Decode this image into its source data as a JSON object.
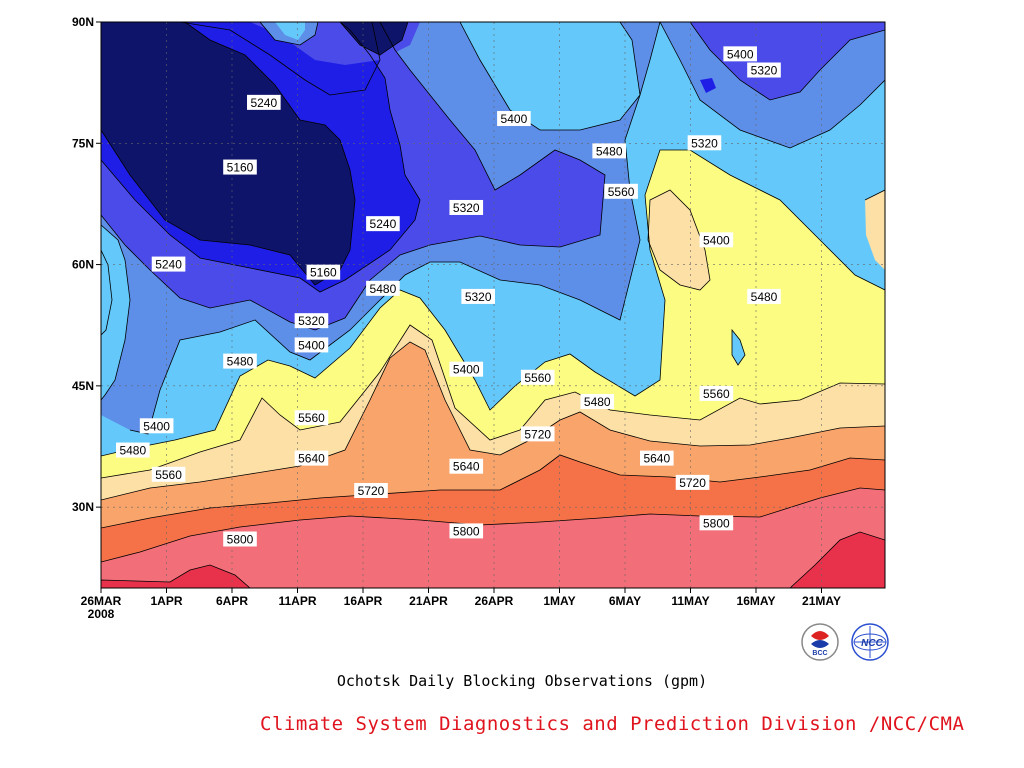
{
  "chart_data": {
    "type": "contour",
    "title": "",
    "caption": "Ochotsk Daily Blocking Observations (gpm)",
    "credit": "Climate System Diagnostics and Prediction Division /NCC/CMA",
    "xlabel": "",
    "ylabel": "",
    "x_ticks": [
      "26MAR\n2008",
      "1APR",
      "6APR",
      "11APR",
      "16APR",
      "21APR",
      "26APR",
      "1MAY",
      "6MAY",
      "11MAY",
      "16MAY",
      "21MAY"
    ],
    "y_ticks": [
      "30N",
      "45N",
      "60N",
      "75N",
      "90N"
    ],
    "ylim": [
      20,
      90
    ],
    "grid": true,
    "contour_levels": [
      5160,
      5240,
      5320,
      5400,
      5480,
      5560,
      5640,
      5720,
      5800,
      5880
    ],
    "band_colors": [
      "#0f146b",
      "#1e1ee6",
      "#4b4bea",
      "#5d8ee8",
      "#64c8fa",
      "#fcfc82",
      "#fce0a6",
      "#f9a46a",
      "#f57249",
      "#f26e78",
      "#e8324b"
    ],
    "contour_labels": [
      {
        "value": "5240",
        "date": "8APR",
        "lat": 80
      },
      {
        "value": "5160",
        "date": "6APR",
        "lat": 72
      },
      {
        "value": "5240",
        "date": "31MAR",
        "lat": 60
      },
      {
        "value": "5160",
        "date": "13APR",
        "lat": 59
      },
      {
        "value": "5240",
        "date": "18APR",
        "lat": 65
      },
      {
        "value": "5320",
        "date": "12APR",
        "lat": 53
      },
      {
        "value": "5400",
        "date": "12APR",
        "lat": 50
      },
      {
        "value": "5480",
        "date": "18APR",
        "lat": 57
      },
      {
        "value": "5480",
        "date": "6APR",
        "lat": 48
      },
      {
        "value": "5400",
        "date": "30MAR",
        "lat": 40
      },
      {
        "value": "5480",
        "date": "28MAR",
        "lat": 37
      },
      {
        "value": "5560",
        "date": "31MAR",
        "lat": 34
      },
      {
        "value": "5560",
        "date": "12APR",
        "lat": 41
      },
      {
        "value": "5640",
        "date": "12APR",
        "lat": 36
      },
      {
        "value": "5720",
        "date": "17APR",
        "lat": 32
      },
      {
        "value": "5800",
        "date": "6APR",
        "lat": 26
      },
      {
        "value": "5400",
        "date": "29APR",
        "lat": 78
      },
      {
        "value": "5320",
        "date": "25APR",
        "lat": 67
      },
      {
        "value": "5320",
        "date": "26APR",
        "lat": 56
      },
      {
        "value": "5400",
        "date": "25APR",
        "lat": 47
      },
      {
        "value": "5560",
        "date": "1MAY",
        "lat": 46
      },
      {
        "value": "5480",
        "date": "6MAY",
        "lat": 43
      },
      {
        "value": "5720",
        "date": "1MAY",
        "lat": 39
      },
      {
        "value": "5640",
        "date": "25APR",
        "lat": 35
      },
      {
        "value": "5800",
        "date": "25APR",
        "lat": 27
      },
      {
        "value": "5480",
        "date": "7MAY",
        "lat": 74
      },
      {
        "value": "5560",
        "date": "8MAY",
        "lat": 69
      },
      {
        "value": "5400",
        "date": "18MAY",
        "lat": 86
      },
      {
        "value": "5320",
        "date": "20MAY",
        "lat": 84
      },
      {
        "value": "5320",
        "date": "15MAY",
        "lat": 75
      },
      {
        "value": "5400",
        "date": "16MAY",
        "lat": 63
      },
      {
        "value": "5480",
        "date": "20MAY",
        "lat": 56
      },
      {
        "value": "5560",
        "date": "16MAY",
        "lat": 44
      },
      {
        "value": "5640",
        "date": "11MAY",
        "lat": 36
      },
      {
        "value": "5720",
        "date": "14MAY",
        "lat": 33
      },
      {
        "value": "5800",
        "date": "16MAY",
        "lat": 28
      }
    ],
    "logos": [
      "BCC",
      "NCC"
    ]
  }
}
